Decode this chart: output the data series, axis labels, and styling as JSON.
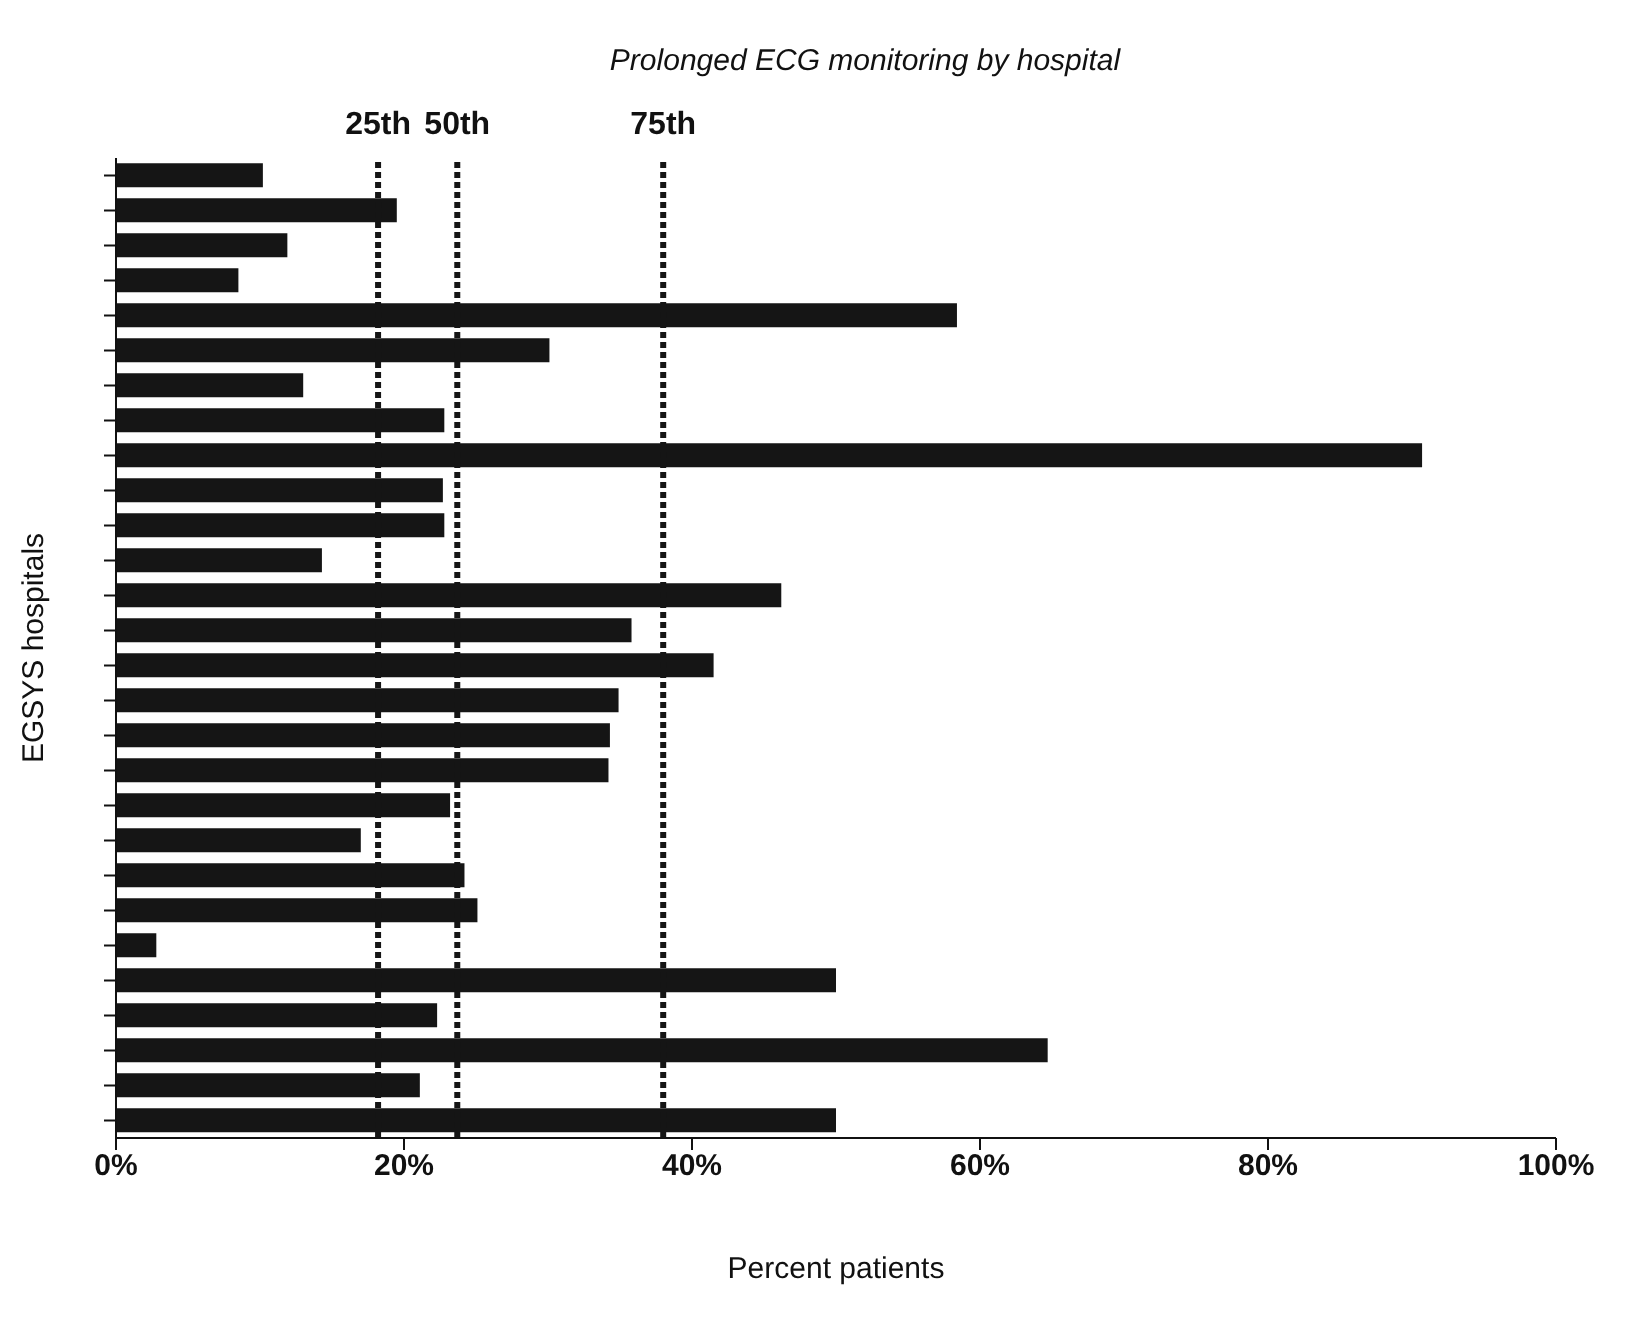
{
  "chart_data": {
    "type": "bar",
    "orientation": "horizontal",
    "title": "Prolonged ECG monitoring by hospital",
    "xlabel": "Percent patients",
    "ylabel": "EGSYS hospitals",
    "categories": [
      null,
      null,
      null,
      null,
      null,
      null,
      null,
      null,
      null,
      null,
      null,
      null,
      null,
      null,
      null,
      null,
      null,
      null,
      null,
      null,
      null,
      null,
      null,
      null,
      null,
      null,
      null,
      null
    ],
    "values": [
      10.2,
      19.5,
      11.9,
      8.5,
      58.4,
      30.1,
      13.0,
      22.8,
      90.7,
      22.7,
      22.8,
      14.3,
      46.2,
      35.8,
      41.5,
      34.9,
      34.3,
      34.2,
      23.2,
      17.0,
      24.2,
      25.1,
      2.8,
      50.0,
      22.3,
      64.7,
      21.1,
      50.0
    ],
    "color": "#151515",
    "xlim": [
      0,
      100
    ],
    "xticks": [
      {
        "value": 0,
        "label": "0%"
      },
      {
        "value": 20,
        "label": "20%"
      },
      {
        "value": 40,
        "label": "40%"
      },
      {
        "value": 60,
        "label": "60%"
      },
      {
        "value": 80,
        "label": "80%"
      },
      {
        "value": 100,
        "label": "100%"
      }
    ],
    "ref_lines": [
      {
        "axis": "x",
        "value": 18.2,
        "label": "25th",
        "color": "#151515",
        "line_style": "dotted"
      },
      {
        "axis": "x",
        "value": 23.7,
        "label": "50th",
        "color": "#151515",
        "line_style": "dotted"
      },
      {
        "axis": "x",
        "value": 38.0,
        "label": "75th",
        "color": "#151515",
        "line_style": "dotted"
      }
    ],
    "grid": false,
    "legend": false
  }
}
